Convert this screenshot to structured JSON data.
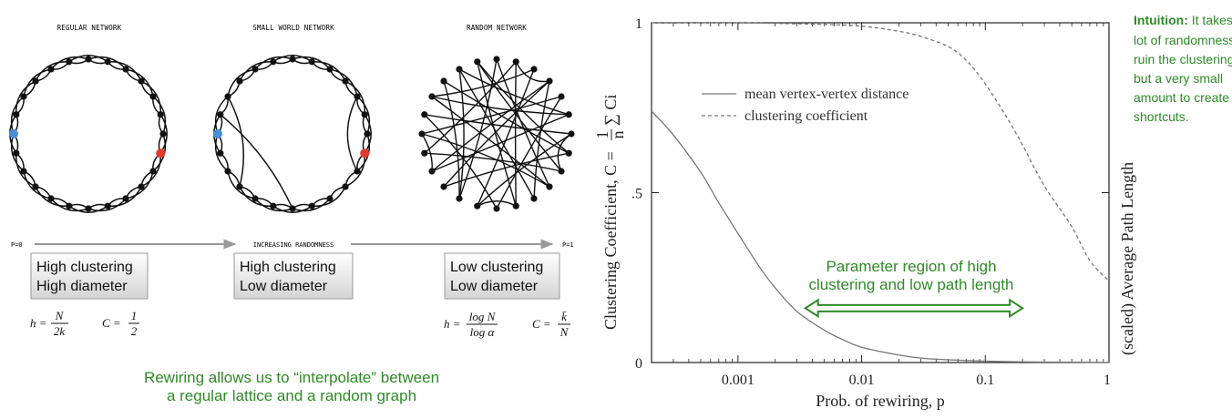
{
  "left_panel": {
    "networks": [
      {
        "title": "REGULAR NETWORK",
        "type": "regular"
      },
      {
        "title": "SMALL WORLD NETWORK",
        "type": "small-world"
      },
      {
        "title": "RANDOM NETWORK",
        "type": "random"
      }
    ],
    "arrow": {
      "left_label": "P=0",
      "middle_label": "INCREASING RANDOMNESS",
      "right_label": "P=1"
    },
    "boxes": [
      {
        "line1": "High clustering",
        "line2": "High diameter"
      },
      {
        "line1": "High clustering",
        "line2": "Low diameter"
      },
      {
        "line1": "Low clustering",
        "line2": "Low diameter"
      }
    ],
    "formulas": {
      "h_regular": {
        "lhs": "h =",
        "num": "N",
        "den": "2k"
      },
      "c_regular": {
        "lhs": "C =",
        "num": "1",
        "den": "2"
      },
      "h_random": {
        "lhs": "h =",
        "num": "log N",
        "den": "log α"
      },
      "c_random": {
        "lhs": "C =",
        "num": "k̄",
        "den": "N"
      }
    },
    "caption_line1": "Rewiring allows us to “interpolate” between",
    "caption_line2": "a regular lattice and a random graph",
    "colors": {
      "highlight_left": "#4a90d9",
      "highlight_right": "#e03a2a",
      "caption": "#2e8b27"
    }
  },
  "chart": {
    "ylabel_left": "Clustering Coefficient, C = ",
    "ylabel_formula": {
      "num": "1",
      "den": "n",
      "sum": "∑ Ci"
    },
    "ylabel_right": "(scaled) Average Path Length",
    "xlabel": "Prob. of rewiring, p",
    "legend": [
      {
        "label": "mean vertex-vertex distance",
        "style": "solid"
      },
      {
        "label": "clustering coefficient",
        "style": "dashed"
      }
    ],
    "region_label_line1": "Parameter region of high",
    "region_label_line2": "clustering and low path length",
    "intuition_bold": "Intuition:",
    "intuition_lines": [
      " It takes a",
      "lot of randomness to",
      "ruin the clustering,",
      "but a very small",
      "amount to create",
      "shortcuts."
    ]
  },
  "chart_data": {
    "type": "line",
    "xscale": "log",
    "xlim": [
      0.0002,
      1
    ],
    "ylim": [
      0,
      1
    ],
    "xticks": [
      {
        "v": 0.001,
        "label": "0.001"
      },
      {
        "v": 0.01,
        "label": "0.01"
      },
      {
        "v": 0.1,
        "label": "0.1"
      },
      {
        "v": 1,
        "label": "1"
      }
    ],
    "yticks": [
      {
        "v": 0,
        "label": "0"
      },
      {
        "v": 0.5,
        "label": ".5"
      },
      {
        "v": 1,
        "label": "1"
      }
    ],
    "series": [
      {
        "name": "mean vertex-vertex distance",
        "style": "solid",
        "x": [
          0.0002,
          0.0003,
          0.0005,
          0.0007,
          0.001,
          0.0015,
          0.002,
          0.003,
          0.005,
          0.007,
          0.01,
          0.02,
          0.03,
          0.05,
          0.1,
          0.2,
          0.5,
          1
        ],
        "y": [
          0.74,
          0.67,
          0.56,
          0.47,
          0.38,
          0.28,
          0.22,
          0.15,
          0.095,
          0.068,
          0.045,
          0.022,
          0.013,
          0.008,
          0.004,
          0.002,
          0.001,
          0.0
        ]
      },
      {
        "name": "clustering coefficient",
        "style": "dashed",
        "x": [
          0.0002,
          0.001,
          0.005,
          0.01,
          0.02,
          0.03,
          0.05,
          0.07,
          0.1,
          0.15,
          0.2,
          0.3,
          0.5,
          0.7,
          1
        ],
        "y": [
          1.0,
          1.0,
          0.995,
          0.99,
          0.975,
          0.96,
          0.93,
          0.89,
          0.82,
          0.72,
          0.64,
          0.52,
          0.4,
          0.3,
          0.24
        ]
      }
    ],
    "region": {
      "x_from": 0.0035,
      "x_to": 0.2,
      "y": 0.16
    }
  }
}
